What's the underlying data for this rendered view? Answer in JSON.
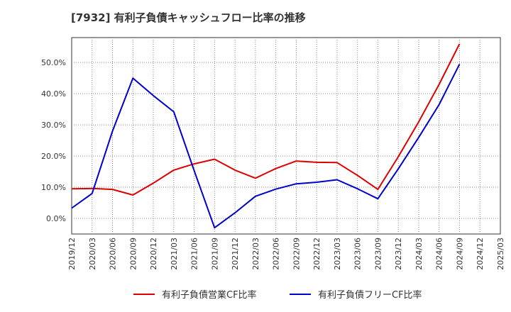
{
  "chart_data": {
    "type": "line",
    "title": "[7932]  有利子負債キャッシュフロー比率の推移",
    "xlabel": "",
    "ylabel": "",
    "categories": [
      "2019/12",
      "2020/03",
      "2020/06",
      "2020/09",
      "2020/12",
      "2021/03",
      "2021/06",
      "2021/09",
      "2021/12",
      "2022/03",
      "2022/06",
      "2022/09",
      "2022/12",
      "2023/03",
      "2023/06",
      "2023/09",
      "2023/12",
      "2024/03",
      "2024/06",
      "2024/09",
      "2024/12",
      "2025/03"
    ],
    "ylim": [
      -5,
      58
    ],
    "yticks": [
      0,
      10,
      20,
      30,
      40,
      50
    ],
    "ytick_labels": [
      "0.0%",
      "10.0%",
      "20.0%",
      "30.0%",
      "40.0%",
      "50.0%"
    ],
    "grid": true,
    "legend_position": "bottom",
    "series": [
      {
        "name": "有利子負債営業CF比率",
        "color": "#dd0000",
        "values": [
          9.5,
          9.6,
          9.3,
          7.5,
          11.3,
          15.5,
          17.5,
          19.0,
          15.5,
          12.9,
          16.0,
          18.4,
          18.0,
          17.9,
          13.8,
          9.3,
          19.8,
          31.0,
          43.0,
          56.0,
          null,
          null
        ]
      },
      {
        "name": "有利子負債フリーCF比率",
        "color": "#0000cc",
        "values": [
          3.3,
          8.0,
          28.0,
          45.0,
          39.4,
          34.2,
          15.3,
          -3.0,
          1.8,
          7.1,
          9.4,
          11.1,
          11.6,
          12.4,
          9.5,
          6.3,
          15.9,
          26.0,
          36.5,
          49.5,
          null,
          null
        ]
      }
    ]
  }
}
